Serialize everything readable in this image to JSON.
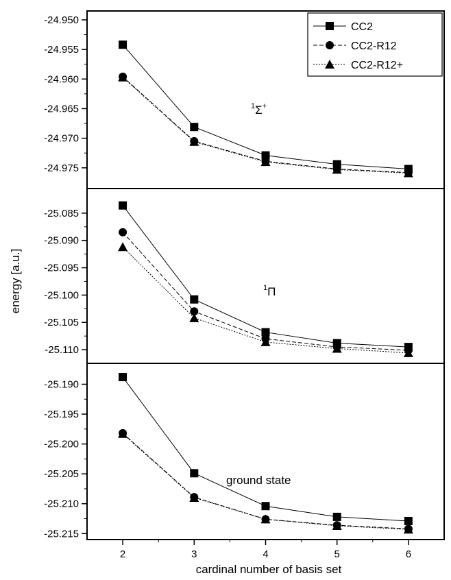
{
  "chart_data": {
    "type": "line",
    "xlabel": "cardinal number of basis set",
    "ylabel": "energy [a.u.]",
    "x": [
      2,
      3,
      4,
      5,
      6
    ],
    "xlim": [
      1.5,
      6.5
    ],
    "legend": {
      "placement": "top-right",
      "entries": [
        {
          "name": "CC2",
          "marker": "square",
          "dash": "solid"
        },
        {
          "name": "CC2-R12",
          "marker": "circle",
          "dash": "dashed"
        },
        {
          "name": "CC2-R12+",
          "marker": "triangle",
          "dash": "dotted"
        }
      ]
    },
    "panels": [
      {
        "annotation": {
          "base": "Σ",
          "pre_sup": "1",
          "post_sup": "+"
        },
        "ylim": [
          -24.9785,
          -24.9485
        ],
        "yticks": [
          -24.95,
          -24.955,
          -24.96,
          -24.965,
          -24.97,
          -24.975
        ],
        "ytick_labels": [
          "-24.950",
          "-24.955",
          "-24.960",
          "-24.965",
          "-24.970",
          "-24.975"
        ],
        "series": [
          {
            "name": "CC2",
            "values": [
              -24.9542,
              -24.9681,
              -24.9729,
              -24.9744,
              -24.9752
            ]
          },
          {
            "name": "CC2-R12",
            "values": [
              -24.9596,
              -24.9705,
              -24.9739,
              -24.9752,
              -24.9758
            ]
          },
          {
            "name": "CC2-R12+",
            "values": [
              -24.9597,
              -24.9706,
              -24.974,
              -24.9753,
              -24.9759
            ]
          }
        ]
      },
      {
        "annotation": {
          "base": "Π",
          "pre_sup": "1",
          "post_sup": ""
        },
        "ylim": [
          -25.1125,
          -25.0805
        ],
        "yticks": [
          -25.085,
          -25.09,
          -25.095,
          -25.1,
          -25.105,
          -25.11
        ],
        "ytick_labels": [
          "-25.085",
          "-25.090",
          "-25.095",
          "-25.100",
          "-25.105",
          "-25.110"
        ],
        "series": [
          {
            "name": "CC2",
            "values": [
              -25.0836,
              -25.1008,
              -25.1068,
              -25.1088,
              -25.1095
            ]
          },
          {
            "name": "CC2-R12",
            "values": [
              -25.0885,
              -25.103,
              -25.108,
              -25.1095,
              -25.1101
            ]
          },
          {
            "name": "CC2-R12+",
            "values": [
              -25.0912,
              -25.1042,
              -25.1086,
              -25.1098,
              -25.1106
            ]
          }
        ]
      },
      {
        "annotation": {
          "base": "ground state",
          "pre_sup": "",
          "post_sup": ""
        },
        "ylim": [
          -25.216,
          -25.1865
        ],
        "yticks": [
          -25.19,
          -25.195,
          -25.2,
          -25.205,
          -25.21,
          -25.215
        ],
        "ytick_labels": [
          "-25.190",
          "-25.195",
          "-25.200",
          "-25.205",
          "-25.210",
          "-25.215"
        ],
        "series": [
          {
            "name": "CC2",
            "values": [
              -25.1888,
              -25.2049,
              -25.2104,
              -25.2122,
              -25.2129
            ]
          },
          {
            "name": "CC2-R12",
            "values": [
              -25.1982,
              -25.2089,
              -25.2126,
              -25.2136,
              -25.2142
            ]
          },
          {
            "name": "CC2-R12+",
            "values": [
              -25.1983,
              -25.209,
              -25.2126,
              -25.2137,
              -25.2143
            ]
          }
        ]
      }
    ]
  }
}
